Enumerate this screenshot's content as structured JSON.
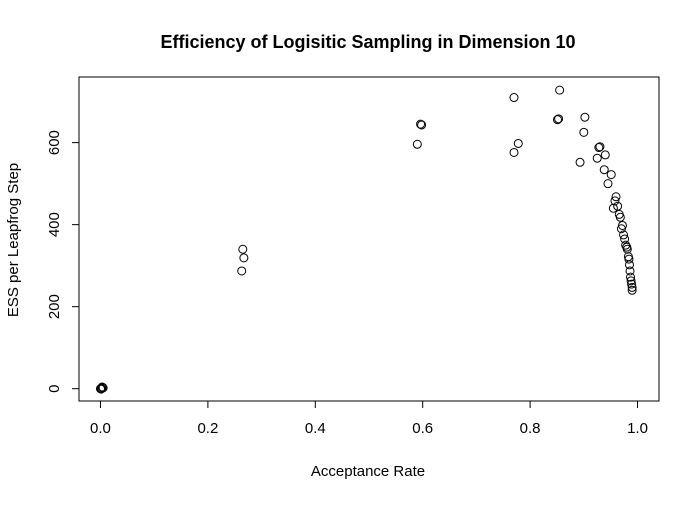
{
  "chart_data": {
    "type": "scatter",
    "title": "Efficiency of Logisitic Sampling in Dimension 10",
    "xlabel": "Acceptance Rate",
    "ylabel": "ESS per Leapfrog Step",
    "xlim": [
      -0.04,
      1.04
    ],
    "ylim": [
      -30,
      760
    ],
    "xticks": [
      0.0,
      0.2,
      0.4,
      0.6,
      0.8,
      1.0
    ],
    "xtick_labels": [
      "0.0",
      "0.2",
      "0.4",
      "0.6",
      "0.8",
      "1.0"
    ],
    "yticks": [
      0,
      200,
      400,
      600
    ],
    "ytick_labels": [
      "0",
      "200",
      "400",
      "600"
    ],
    "grid": false,
    "legend": "none",
    "marker": "open-circle",
    "x": [
      0.0,
      0.003,
      0.005,
      0.001,
      0.004,
      0.002,
      0.263,
      0.265,
      0.267,
      0.59,
      0.596,
      0.598,
      0.77,
      0.77,
      0.778,
      0.851,
      0.853,
      0.855,
      0.893,
      0.9,
      0.902,
      0.925,
      0.928,
      0.93,
      0.938,
      0.94,
      0.945,
      0.951,
      0.955,
      0.958,
      0.96,
      0.963,
      0.966,
      0.968,
      0.97,
      0.972,
      0.974,
      0.976,
      0.978,
      0.98,
      0.981,
      0.983,
      0.984,
      0.985,
      0.986,
      0.987,
      0.988,
      0.989,
      0.99,
      0.99
    ],
    "y": [
      0,
      4,
      2,
      -1,
      3,
      1,
      287,
      340,
      319,
      596,
      645,
      643,
      710,
      576,
      598,
      656,
      658,
      728,
      552,
      625,
      662,
      562,
      588,
      590,
      534,
      570,
      500,
      522,
      440,
      458,
      468,
      445,
      425,
      418,
      390,
      398,
      375,
      365,
      350,
      345,
      340,
      322,
      316,
      302,
      287,
      272,
      263,
      255,
      247,
      240
    ]
  }
}
